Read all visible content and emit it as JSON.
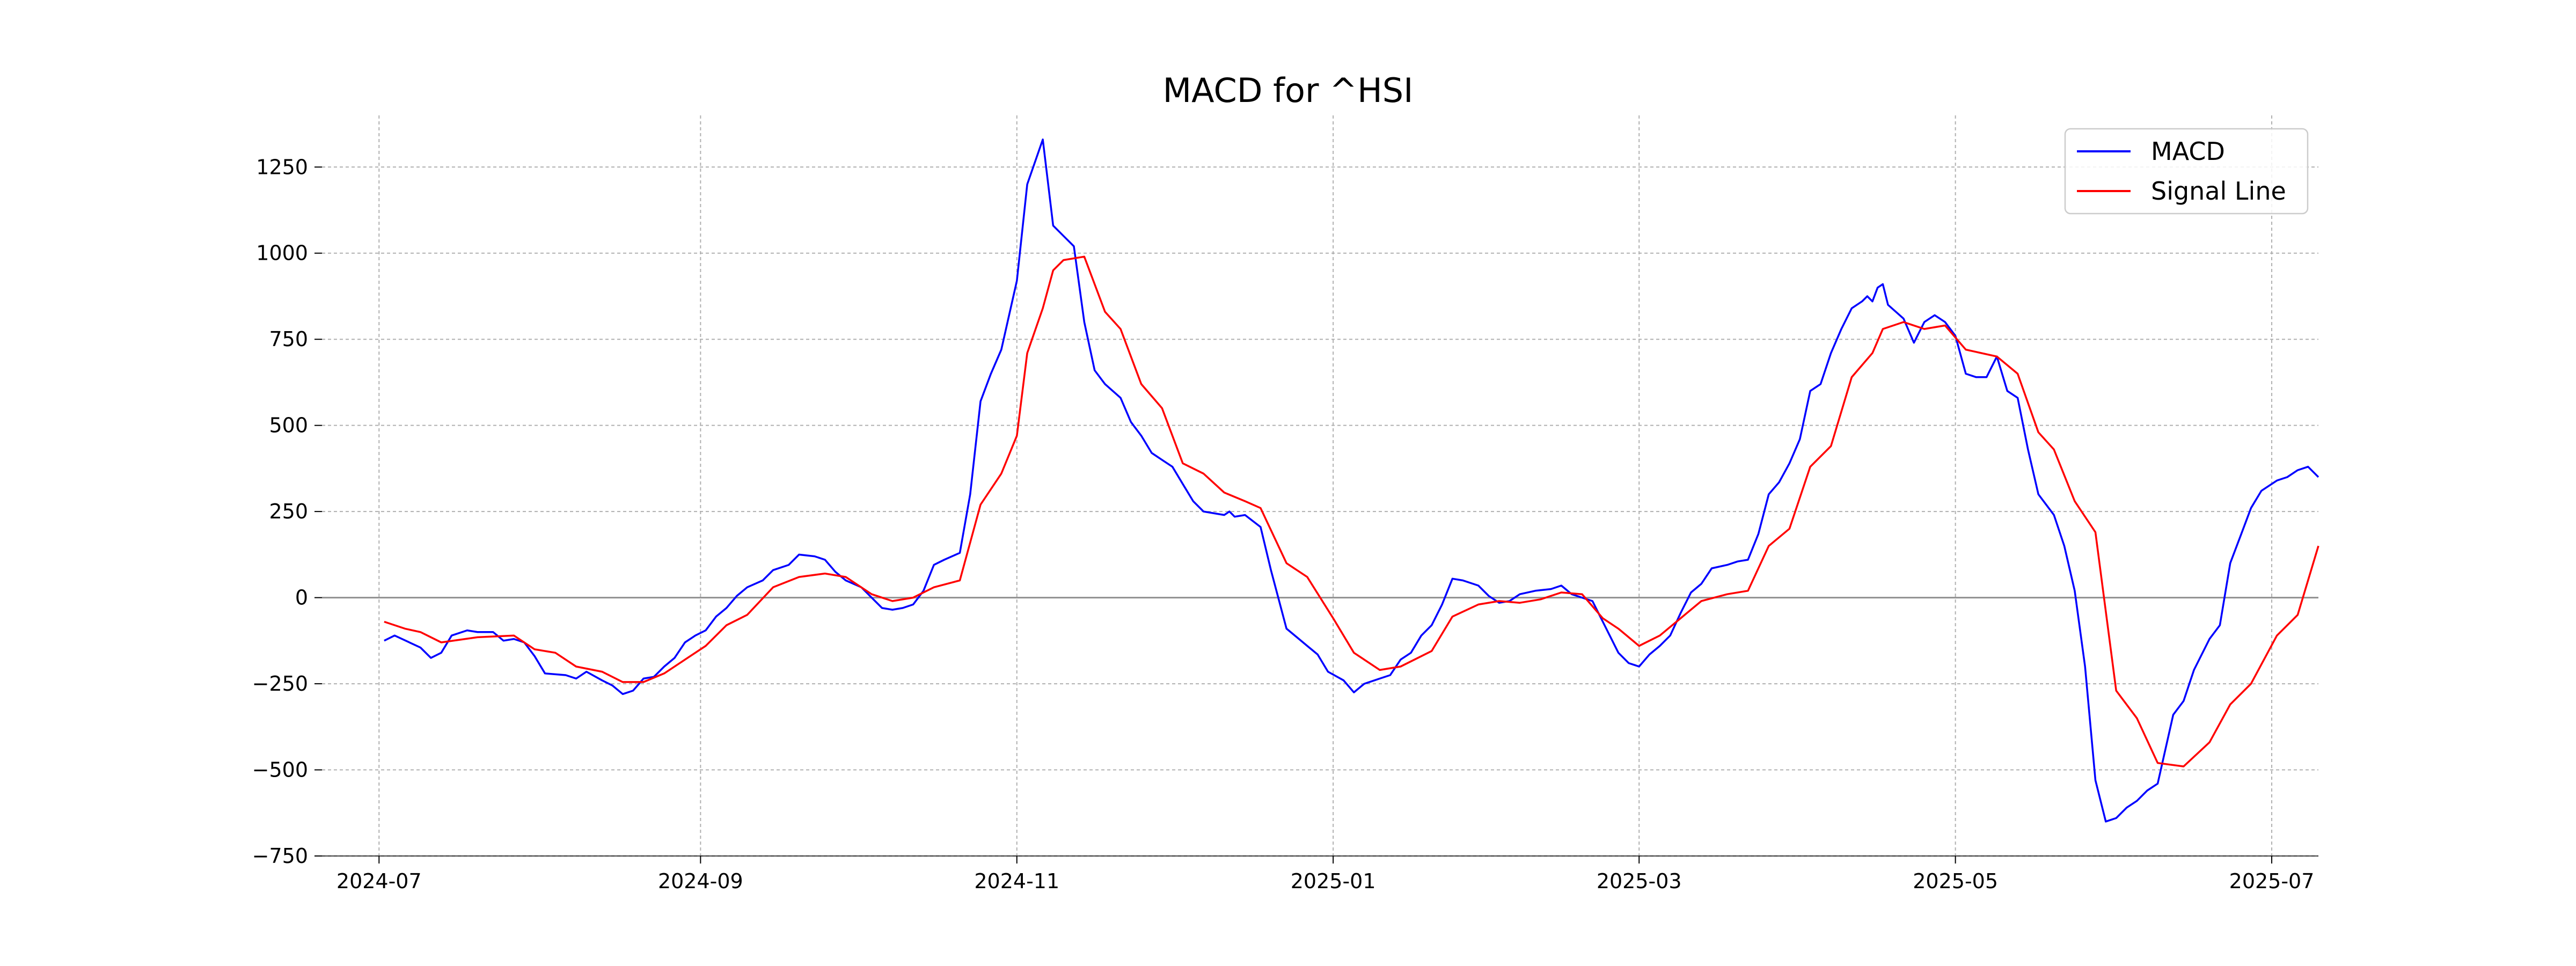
{
  "chart_data": {
    "type": "line",
    "title": "MACD for ^HSI",
    "xlabel": "",
    "ylabel": "",
    "ylim": [
      -750,
      1400
    ],
    "xlim": [
      "2024-06-20",
      "2025-07-10"
    ],
    "grid": true,
    "legend_position": "top-right",
    "x_ticks": [
      {
        "date": "2024-07-01",
        "label": "2024-07"
      },
      {
        "date": "2024-09-01",
        "label": "2024-09"
      },
      {
        "date": "2024-11-01",
        "label": "2024-11"
      },
      {
        "date": "2025-01-01",
        "label": "2025-01"
      },
      {
        "date": "2025-03-01",
        "label": "2025-03"
      },
      {
        "date": "2025-05-01",
        "label": "2025-05"
      },
      {
        "date": "2025-07-01",
        "label": "2025-07"
      }
    ],
    "y_ticks": [
      {
        "value": 1250,
        "label": "1250"
      },
      {
        "value": 1000,
        "label": "1000"
      },
      {
        "value": 750,
        "label": "750"
      },
      {
        "value": 500,
        "label": "500"
      },
      {
        "value": 250,
        "label": "250"
      },
      {
        "value": 0,
        "label": "0"
      },
      {
        "value": -250,
        "label": "−250"
      },
      {
        "value": -500,
        "label": "−500"
      },
      {
        "value": -750,
        "label": "−750"
      }
    ],
    "series": [
      {
        "name": "MACD",
        "color": "#0000ff",
        "points": [
          [
            "2024-07-02",
            -125
          ],
          [
            "2024-07-04",
            -110
          ],
          [
            "2024-07-09",
            -145
          ],
          [
            "2024-07-11",
            -175
          ],
          [
            "2024-07-13",
            -160
          ],
          [
            "2024-07-15",
            -110
          ],
          [
            "2024-07-18",
            -95
          ],
          [
            "2024-07-20",
            -100
          ],
          [
            "2024-07-23",
            -100
          ],
          [
            "2024-07-25",
            -125
          ],
          [
            "2024-07-27",
            -120
          ],
          [
            "2024-07-29",
            -130
          ],
          [
            "2024-07-31",
            -170
          ],
          [
            "2024-08-02",
            -220
          ],
          [
            "2024-08-06",
            -225
          ],
          [
            "2024-08-08",
            -235
          ],
          [
            "2024-08-10",
            -215
          ],
          [
            "2024-08-13",
            -240
          ],
          [
            "2024-08-15",
            -255
          ],
          [
            "2024-08-17",
            -280
          ],
          [
            "2024-08-19",
            -270
          ],
          [
            "2024-08-21",
            -235
          ],
          [
            "2024-08-23",
            -230
          ],
          [
            "2024-08-25",
            -200
          ],
          [
            "2024-08-27",
            -175
          ],
          [
            "2024-08-29",
            -130
          ],
          [
            "2024-08-31",
            -110
          ],
          [
            "2024-09-02",
            -95
          ],
          [
            "2024-09-04",
            -55
          ],
          [
            "2024-09-06",
            -30
          ],
          [
            "2024-09-08",
            5
          ],
          [
            "2024-09-10",
            30
          ],
          [
            "2024-09-13",
            50
          ],
          [
            "2024-09-15",
            80
          ],
          [
            "2024-09-18",
            95
          ],
          [
            "2024-09-20",
            125
          ],
          [
            "2024-09-23",
            120
          ],
          [
            "2024-09-25",
            110
          ],
          [
            "2024-09-27",
            75
          ],
          [
            "2024-09-29",
            50
          ],
          [
            "2024-10-02",
            30
          ],
          [
            "2024-10-04",
            0
          ],
          [
            "2024-10-06",
            -30
          ],
          [
            "2024-10-08",
            -35
          ],
          [
            "2024-10-10",
            -30
          ],
          [
            "2024-10-12",
            -20
          ],
          [
            "2024-10-14",
            20
          ],
          [
            "2024-10-16",
            95
          ],
          [
            "2024-10-18",
            110
          ],
          [
            "2024-10-21",
            130
          ],
          [
            "2024-10-23",
            300
          ],
          [
            "2024-10-25",
            570
          ],
          [
            "2024-10-27",
            650
          ],
          [
            "2024-10-29",
            720
          ],
          [
            "2024-11-01",
            920
          ],
          [
            "2024-11-03",
            1200
          ],
          [
            "2024-11-06",
            1330
          ],
          [
            "2024-11-08",
            1080
          ],
          [
            "2024-11-10",
            1050
          ],
          [
            "2024-11-12",
            1020
          ],
          [
            "2024-11-14",
            800
          ],
          [
            "2024-11-16",
            660
          ],
          [
            "2024-11-18",
            620
          ],
          [
            "2024-11-21",
            580
          ],
          [
            "2024-11-23",
            510
          ],
          [
            "2024-11-25",
            470
          ],
          [
            "2024-11-27",
            420
          ],
          [
            "2024-11-29",
            400
          ],
          [
            "2024-12-01",
            380
          ],
          [
            "2024-12-03",
            330
          ],
          [
            "2024-12-05",
            280
          ],
          [
            "2024-12-07",
            250
          ],
          [
            "2024-12-11",
            240
          ],
          [
            "2024-12-12",
            250
          ],
          [
            "2024-12-13",
            235
          ],
          [
            "2024-12-15",
            240
          ],
          [
            "2024-12-18",
            205
          ],
          [
            "2024-12-20",
            80
          ],
          [
            "2024-12-23",
            -90
          ],
          [
            "2024-12-25",
            -115
          ],
          [
            "2024-12-27",
            -140
          ],
          [
            "2024-12-29",
            -165
          ],
          [
            "2024-12-31",
            -215
          ],
          [
            "2025-01-03",
            -240
          ],
          [
            "2025-01-05",
            -275
          ],
          [
            "2025-01-07",
            -250
          ],
          [
            "2025-01-10",
            -235
          ],
          [
            "2025-01-12",
            -225
          ],
          [
            "2025-01-14",
            -180
          ],
          [
            "2025-01-16",
            -160
          ],
          [
            "2025-01-18",
            -110
          ],
          [
            "2025-01-20",
            -80
          ],
          [
            "2025-01-22",
            -20
          ],
          [
            "2025-01-24",
            55
          ],
          [
            "2025-01-26",
            50
          ],
          [
            "2025-01-29",
            35
          ],
          [
            "2025-01-31",
            5
          ],
          [
            "2025-02-02",
            -15
          ],
          [
            "2025-02-04",
            -10
          ],
          [
            "2025-02-06",
            10
          ],
          [
            "2025-02-09",
            20
          ],
          [
            "2025-02-12",
            25
          ],
          [
            "2025-02-14",
            35
          ],
          [
            "2025-02-16",
            10
          ],
          [
            "2025-02-18",
            0
          ],
          [
            "2025-02-20",
            -10
          ],
          [
            "2025-02-22",
            -70
          ],
          [
            "2025-02-25",
            -160
          ],
          [
            "2025-02-27",
            -190
          ],
          [
            "2025-03-01",
            -200
          ],
          [
            "2025-03-03",
            -165
          ],
          [
            "2025-03-05",
            -140
          ],
          [
            "2025-03-07",
            -110
          ],
          [
            "2025-03-09",
            -45
          ],
          [
            "2025-03-11",
            15
          ],
          [
            "2025-03-13",
            40
          ],
          [
            "2025-03-15",
            85
          ],
          [
            "2025-03-18",
            95
          ],
          [
            "2025-03-20",
            105
          ],
          [
            "2025-03-22",
            110
          ],
          [
            "2025-03-24",
            185
          ],
          [
            "2025-03-26",
            300
          ],
          [
            "2025-03-28",
            335
          ],
          [
            "2025-03-30",
            390
          ],
          [
            "2025-04-01",
            460
          ],
          [
            "2025-04-03",
            600
          ],
          [
            "2025-04-05",
            620
          ],
          [
            "2025-04-07",
            710
          ],
          [
            "2025-04-09",
            780
          ],
          [
            "2025-04-11",
            840
          ],
          [
            "2025-04-13",
            860
          ],
          [
            "2025-04-14",
            875
          ],
          [
            "2025-04-15",
            860
          ],
          [
            "2025-04-16",
            900
          ],
          [
            "2025-04-17",
            910
          ],
          [
            "2025-04-18",
            850
          ],
          [
            "2025-04-21",
            810
          ],
          [
            "2025-04-23",
            740
          ],
          [
            "2025-04-25",
            800
          ],
          [
            "2025-04-27",
            820
          ],
          [
            "2025-04-29",
            800
          ],
          [
            "2025-05-01",
            760
          ],
          [
            "2025-05-03",
            650
          ],
          [
            "2025-05-05",
            640
          ],
          [
            "2025-05-07",
            640
          ],
          [
            "2025-05-09",
            700
          ],
          [
            "2025-05-11",
            600
          ],
          [
            "2025-05-13",
            580
          ],
          [
            "2025-05-15",
            430
          ],
          [
            "2025-05-17",
            300
          ],
          [
            "2025-05-20",
            240
          ],
          [
            "2025-05-22",
            150
          ],
          [
            "2025-05-24",
            20
          ],
          [
            "2025-05-26",
            -200
          ],
          [
            "2025-05-28",
            -530
          ],
          [
            "2025-05-30",
            -650
          ],
          [
            "2025-06-01",
            -640
          ],
          [
            "2025-06-03",
            -610
          ],
          [
            "2025-06-05",
            -590
          ],
          [
            "2025-06-07",
            -560
          ],
          [
            "2025-06-09",
            -540
          ],
          [
            "2025-06-12",
            -340
          ],
          [
            "2025-06-14",
            -300
          ],
          [
            "2025-06-16",
            -210
          ],
          [
            "2025-06-19",
            -120
          ],
          [
            "2025-06-21",
            -80
          ],
          [
            "2025-06-23",
            100
          ],
          [
            "2025-06-25",
            180
          ],
          [
            "2025-06-27",
            260
          ],
          [
            "2025-06-29",
            310
          ],
          [
            "2025-07-02",
            340
          ],
          [
            "2025-07-04",
            350
          ],
          [
            "2025-07-06",
            370
          ],
          [
            "2025-07-08",
            380
          ],
          [
            "2025-07-10",
            350
          ]
        ]
      },
      {
        "name": "Signal Line",
        "color": "#ff0000",
        "points": [
          [
            "2024-07-02",
            -70
          ],
          [
            "2024-07-06",
            -90
          ],
          [
            "2024-07-09",
            -100
          ],
          [
            "2024-07-13",
            -130
          ],
          [
            "2024-07-20",
            -115
          ],
          [
            "2024-07-27",
            -110
          ],
          [
            "2024-07-31",
            -150
          ],
          [
            "2024-08-04",
            -160
          ],
          [
            "2024-08-08",
            -200
          ],
          [
            "2024-08-13",
            -215
          ],
          [
            "2024-08-17",
            -245
          ],
          [
            "2024-08-21",
            -245
          ],
          [
            "2024-08-25",
            -220
          ],
          [
            "2024-08-29",
            -180
          ],
          [
            "2024-09-02",
            -140
          ],
          [
            "2024-09-06",
            -80
          ],
          [
            "2024-09-10",
            -50
          ],
          [
            "2024-09-15",
            30
          ],
          [
            "2024-09-20",
            60
          ],
          [
            "2024-09-25",
            70
          ],
          [
            "2024-09-29",
            60
          ],
          [
            "2024-10-04",
            10
          ],
          [
            "2024-10-08",
            -10
          ],
          [
            "2024-10-12",
            0
          ],
          [
            "2024-10-16",
            30
          ],
          [
            "2024-10-21",
            50
          ],
          [
            "2024-10-25",
            270
          ],
          [
            "2024-10-29",
            360
          ],
          [
            "2024-11-01",
            470
          ],
          [
            "2024-11-03",
            710
          ],
          [
            "2024-11-06",
            840
          ],
          [
            "2024-11-08",
            950
          ],
          [
            "2024-11-10",
            980
          ],
          [
            "2024-11-14",
            990
          ],
          [
            "2024-11-18",
            830
          ],
          [
            "2024-11-21",
            780
          ],
          [
            "2024-11-25",
            620
          ],
          [
            "2024-11-29",
            550
          ],
          [
            "2024-12-03",
            390
          ],
          [
            "2024-12-07",
            360
          ],
          [
            "2024-12-11",
            305
          ],
          [
            "2024-12-15",
            280
          ],
          [
            "2024-12-18",
            260
          ],
          [
            "2024-12-23",
            100
          ],
          [
            "2024-12-27",
            60
          ],
          [
            "2025-01-01",
            -60
          ],
          [
            "2025-01-05",
            -160
          ],
          [
            "2025-01-10",
            -210
          ],
          [
            "2025-01-14",
            -200
          ],
          [
            "2025-01-20",
            -155
          ],
          [
            "2025-01-24",
            -55
          ],
          [
            "2025-01-29",
            -20
          ],
          [
            "2025-02-02",
            -10
          ],
          [
            "2025-02-06",
            -15
          ],
          [
            "2025-02-10",
            -5
          ],
          [
            "2025-02-14",
            15
          ],
          [
            "2025-02-18",
            10
          ],
          [
            "2025-02-22",
            -60
          ],
          [
            "2025-02-25",
            -90
          ],
          [
            "2025-03-01",
            -140
          ],
          [
            "2025-03-05",
            -110
          ],
          [
            "2025-03-09",
            -60
          ],
          [
            "2025-03-13",
            -10
          ],
          [
            "2025-03-18",
            10
          ],
          [
            "2025-03-22",
            20
          ],
          [
            "2025-03-26",
            150
          ],
          [
            "2025-03-30",
            200
          ],
          [
            "2025-04-03",
            380
          ],
          [
            "2025-04-07",
            440
          ],
          [
            "2025-04-11",
            640
          ],
          [
            "2025-04-15",
            710
          ],
          [
            "2025-04-17",
            780
          ],
          [
            "2025-04-21",
            800
          ],
          [
            "2025-04-25",
            780
          ],
          [
            "2025-04-29",
            790
          ],
          [
            "2025-05-03",
            720
          ],
          [
            "2025-05-09",
            700
          ],
          [
            "2025-05-13",
            650
          ],
          [
            "2025-05-17",
            480
          ],
          [
            "2025-05-20",
            430
          ],
          [
            "2025-05-24",
            280
          ],
          [
            "2025-05-28",
            190
          ],
          [
            "2025-06-01",
            -270
          ],
          [
            "2025-06-05",
            -350
          ],
          [
            "2025-06-09",
            -480
          ],
          [
            "2025-06-14",
            -490
          ],
          [
            "2025-06-19",
            -420
          ],
          [
            "2025-06-23",
            -310
          ],
          [
            "2025-06-27",
            -250
          ],
          [
            "2025-07-02",
            -110
          ],
          [
            "2025-07-06",
            -50
          ],
          [
            "2025-07-10",
            150
          ]
        ]
      }
    ]
  }
}
